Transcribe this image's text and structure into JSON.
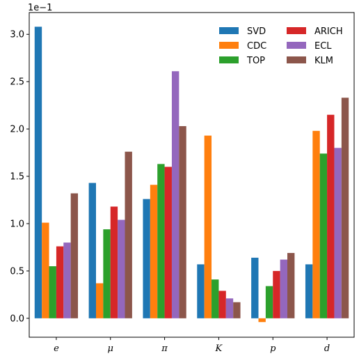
{
  "chart_data": {
    "type": "bar",
    "categories": [
      "e",
      "μ",
      "π",
      "K",
      "p",
      "d"
    ],
    "series": [
      {
        "name": "SVD",
        "color": "#1f77b4",
        "values": [
          3.08,
          1.43,
          1.26,
          0.57,
          0.64,
          0.57
        ]
      },
      {
        "name": "CDC",
        "color": "#ff7f0e",
        "values": [
          1.01,
          0.37,
          1.41,
          1.93,
          -0.04,
          1.98
        ]
      },
      {
        "name": "TOP",
        "color": "#2ca02c",
        "values": [
          0.55,
          0.94,
          1.63,
          0.41,
          0.34,
          1.74
        ]
      },
      {
        "name": "ARICH",
        "color": "#d62728",
        "values": [
          0.76,
          1.18,
          1.6,
          0.29,
          0.5,
          2.15
        ]
      },
      {
        "name": "ECL",
        "color": "#9467bd",
        "values": [
          0.8,
          1.04,
          2.61,
          0.21,
          0.62,
          1.8
        ]
      },
      {
        "name": "KLM",
        "color": "#8c564b",
        "values": [
          1.32,
          1.76,
          2.03,
          0.17,
          0.69,
          2.33
        ]
      }
    ],
    "scale_label": "1e−1",
    "yticks": [
      "0.0",
      "0.5",
      "1.0",
      "1.5",
      "2.0",
      "2.5",
      "3.0"
    ],
    "ylim": [
      -0.2,
      3.23
    ],
    "xlabel": "",
    "ylabel": "",
    "grid": false,
    "legend": {
      "placement": "top-right",
      "columns": 2
    }
  }
}
